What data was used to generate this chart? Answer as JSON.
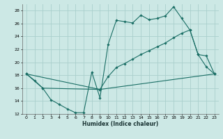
{
  "xlabel": "Humidex (Indice chaleur)",
  "ylabel": "",
  "background_color": "#cce8e5",
  "grid_color": "#aacfcc",
  "line_color": "#1a6e65",
  "xlim": [
    -0.5,
    23.5
  ],
  "ylim": [
    12,
    29
  ],
  "xticks": [
    0,
    1,
    2,
    3,
    4,
    5,
    6,
    7,
    8,
    9,
    10,
    11,
    12,
    13,
    14,
    15,
    16,
    17,
    18,
    19,
    20,
    21,
    22,
    23
  ],
  "yticks": [
    12,
    14,
    16,
    18,
    20,
    22,
    24,
    26,
    28
  ],
  "series": [
    {
      "x": [
        0,
        1,
        2,
        3,
        4,
        5,
        6,
        7,
        8,
        9,
        10,
        11,
        12,
        13,
        14,
        15,
        16,
        17,
        18,
        19,
        20,
        21,
        22,
        23
      ],
      "y": [
        18.2,
        17.2,
        16.0,
        14.2,
        13.5,
        12.8,
        12.2,
        12.2,
        18.5,
        14.5,
        22.8,
        26.5,
        26.3,
        26.1,
        27.3,
        26.6,
        26.8,
        27.2,
        28.6,
        26.8,
        25.0,
        21.2,
        19.3,
        18.2
      ]
    },
    {
      "x": [
        0,
        2,
        9,
        10,
        11,
        12,
        13,
        14,
        15,
        16,
        17,
        18,
        19,
        20,
        21,
        22,
        23
      ],
      "y": [
        18.2,
        16.0,
        15.8,
        17.8,
        19.2,
        19.8,
        20.5,
        21.2,
        21.8,
        22.4,
        23.0,
        23.8,
        24.5,
        25.0,
        21.2,
        21.0,
        18.2
      ]
    },
    {
      "x": [
        0,
        9,
        23
      ],
      "y": [
        18.2,
        15.8,
        18.2
      ]
    }
  ]
}
